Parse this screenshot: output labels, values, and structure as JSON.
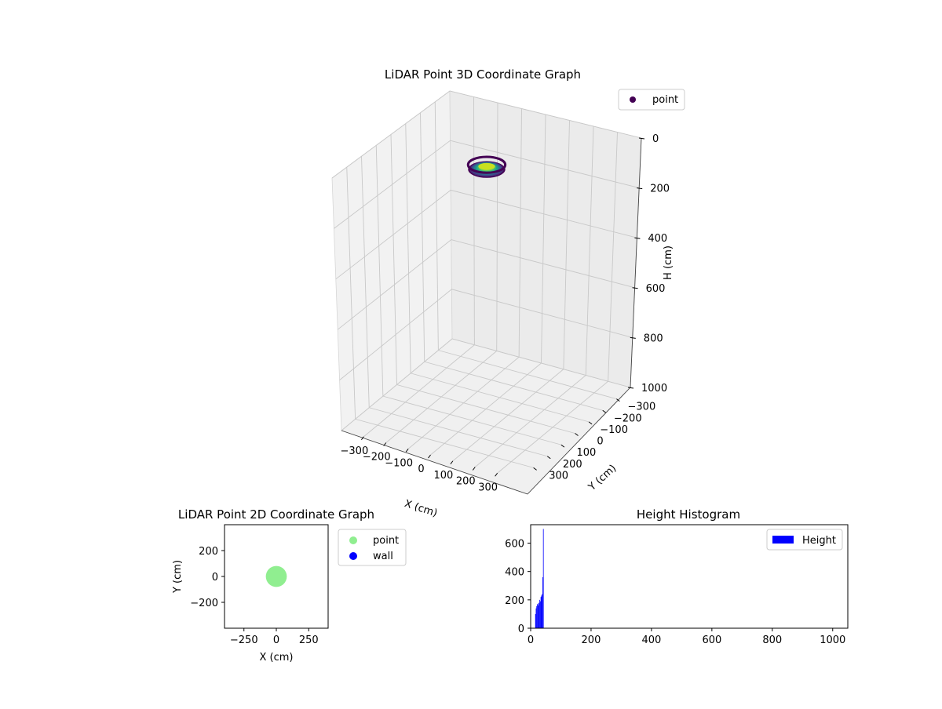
{
  "chart_data": [
    {
      "type": "scatter",
      "title": "LiDAR Point 3D Coordinate Graph",
      "xlabel": "X (cm)",
      "ylabel": "Y (cm)",
      "zlabel": "H (cm)",
      "xlim": [
        -400,
        400
      ],
      "ylim": [
        -400,
        400
      ],
      "zlim": [
        1000,
        0
      ],
      "x_ticks": [
        -300,
        -200,
        -100,
        0,
        100,
        200,
        300
      ],
      "y_ticks": [
        -300,
        -200,
        -100,
        0,
        100,
        200,
        300
      ],
      "z_ticks": [
        0,
        200,
        400,
        600,
        800,
        1000
      ],
      "z_inverted": true,
      "grid": true,
      "legend": {
        "placement": "top-right",
        "entries": [
          {
            "label": "point",
            "color": "#440154"
          }
        ]
      },
      "colormap": "viridis",
      "series": [
        {
          "name": "point",
          "shape": "ring",
          "center": [
            0,
            0
          ],
          "radius_min": 30,
          "radius_max": 45,
          "height_range": [
            10,
            50
          ]
        }
      ]
    },
    {
      "type": "scatter",
      "title": "LiDAR Point 2D Coordinate Graph",
      "xlabel": "X (cm)",
      "ylabel": "Y (cm)",
      "xlim": [
        -400,
        400
      ],
      "ylim": [
        -400,
        400
      ],
      "x_ticks": [
        -250,
        0,
        250
      ],
      "y_ticks": [
        -200,
        0,
        200
      ],
      "legend": {
        "placement": "outside-right",
        "entries": [
          {
            "label": "point",
            "color": "#90ee90"
          },
          {
            "label": "wall",
            "color": "#0000ff"
          }
        ]
      },
      "series": [
        {
          "name": "point",
          "color": "#90ee90",
          "shape": "disc",
          "center": [
            0,
            0
          ],
          "radius": 45
        },
        {
          "name": "wall",
          "color": "#0000ff",
          "points": []
        }
      ]
    },
    {
      "type": "bar",
      "title": "Height Histogram",
      "xlabel": "",
      "ylabel": "",
      "xlim": [
        0,
        1050
      ],
      "ylim": [
        0,
        730
      ],
      "x_ticks": [
        0,
        200,
        400,
        600,
        800,
        1000
      ],
      "y_ticks": [
        0,
        200,
        400,
        600
      ],
      "legend": {
        "placement": "top-right",
        "entries": [
          {
            "label": "Height",
            "color": "#0000ff"
          }
        ]
      },
      "bins": [
        {
          "x0": 15,
          "x1": 17,
          "count": 100
        },
        {
          "x0": 17,
          "x1": 19,
          "count": 140
        },
        {
          "x0": 19,
          "x1": 21,
          "count": 155
        },
        {
          "x0": 21,
          "x1": 23,
          "count": 170
        },
        {
          "x0": 23,
          "x1": 25,
          "count": 160
        },
        {
          "x0": 25,
          "x1": 27,
          "count": 175
        },
        {
          "x0": 27,
          "x1": 29,
          "count": 180
        },
        {
          "x0": 29,
          "x1": 31,
          "count": 200
        },
        {
          "x0": 31,
          "x1": 33,
          "count": 190
        },
        {
          "x0": 33,
          "x1": 35,
          "count": 220
        },
        {
          "x0": 35,
          "x1": 37,
          "count": 230
        },
        {
          "x0": 37,
          "x1": 39,
          "count": 240
        },
        {
          "x0": 39,
          "x1": 41,
          "count": 360
        },
        {
          "x0": 41,
          "x1": 43,
          "count": 700
        }
      ]
    }
  ]
}
